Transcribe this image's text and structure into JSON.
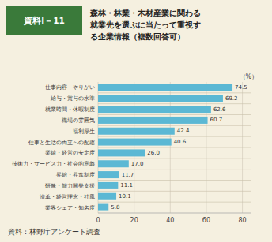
{
  "chart_data": {
    "type": "bar",
    "orientation": "horizontal",
    "title": "森林・林業・木材産業に関わる\n就業先を選ぶに当たって重視す\nる企業情報（複数回答可）",
    "xlabel": "（%）",
    "annotations": [
      "資料Ⅰ－11",
      "資料：林野庁アンケート調査"
    ],
    "categories": [
      "仕事内容・やりがい",
      "給与・賞与の水準",
      "就業時間・休暇制度",
      "職場の雰囲気",
      "福利厚生",
      "仕事と生活の両立への配慮",
      "業績・経営の安定度",
      "技術力・サービス力・社会的意義",
      "昇給・昇進制度",
      "研修・能力開発支援",
      "沿革・経営理念・社風",
      "業界シェア・知名度"
    ],
    "values": [
      74.5,
      69.2,
      62.6,
      60.7,
      42.4,
      40.6,
      26.0,
      17.0,
      11.7,
      11.1,
      10.1,
      5.8
    ],
    "value_labels": [
      "74.5",
      "69.2",
      "62.6",
      "60.7",
      "42.4",
      "40.6",
      "26.0",
      "17.0",
      "11.7",
      "11.1",
      "10.1",
      "5.8"
    ],
    "data_labels": true,
    "color": "#5bb8d4",
    "xlim": [
      0,
      85
    ],
    "xticks": [
      0,
      20,
      40,
      60,
      80
    ],
    "grid": true
  }
}
